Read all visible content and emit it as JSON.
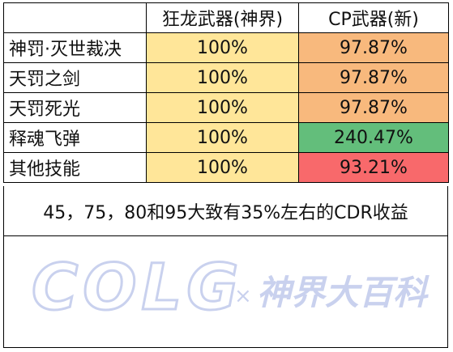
{
  "colors": {
    "yellow": "#ffe699",
    "orange": "#f8b97d",
    "green": "#63be7b",
    "red": "#f8696b",
    "watermark": "#c9d1ee"
  },
  "table": {
    "headers": [
      "",
      "狂龙武器(神界)",
      "CP武器(新)"
    ],
    "rows": [
      {
        "name": "神罚·灭世裁决",
        "v1": "100%",
        "v2": "97.87%",
        "v2_color": "orange"
      },
      {
        "name": "天罚之剑",
        "v1": "100%",
        "v2": "97.87%",
        "v2_color": "orange"
      },
      {
        "name": "天罚死光",
        "v1": "100%",
        "v2": "97.87%",
        "v2_color": "orange"
      },
      {
        "name": "释魂飞弹",
        "v1": "100%",
        "v2": "240.47%",
        "v2_color": "green"
      },
      {
        "name": "其他技能",
        "v1": "100%",
        "v2": "93.21%",
        "v2_color": "red"
      }
    ]
  },
  "note": "45，75，80和95大致有35%左右的CDR收益",
  "watermark": {
    "logo": "COLG",
    "separator": "×",
    "subtitle": "神界大百科"
  }
}
